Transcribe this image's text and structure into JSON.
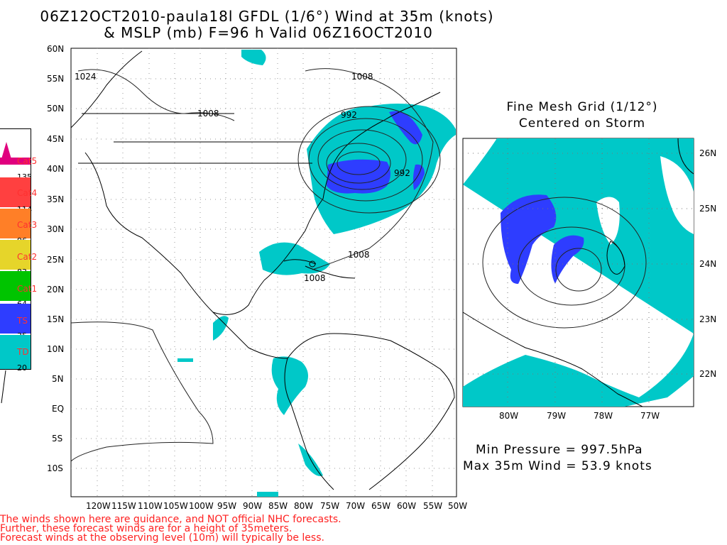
{
  "title": {
    "line1": "06Z12OCT2010-paula18l GFDL (1/6°) Wind at 35m (knots)",
    "line2": "& MSLP (mb) F=96 h Valid 06Z16OCT2010"
  },
  "main_map": {
    "lat_labels": [
      "60N",
      "55N",
      "50N",
      "45N",
      "40N",
      "35N",
      "30N",
      "25N",
      "20N",
      "15N",
      "10N",
      "5N",
      "EQ",
      "5S",
      "10S"
    ],
    "lon_labels": [
      "120W",
      "115W",
      "110W",
      "105W",
      "100W",
      "95W",
      "90W",
      "85W",
      "80W",
      "75W",
      "70W",
      "65W",
      "60W",
      "55W",
      "50W"
    ],
    "isobar_labels": [
      "1024",
      "1008",
      "1008",
      "992",
      "992",
      "1008",
      "1008"
    ]
  },
  "legend": {
    "categories": [
      {
        "name": "Cat5",
        "threshold": "135",
        "color": "#e0007e"
      },
      {
        "name": "Cat4",
        "threshold": "114",
        "color": "#ff4040"
      },
      {
        "name": "Cat3",
        "threshold": "96",
        "color": "#ff7f27"
      },
      {
        "name": "Cat2",
        "threshold": "83",
        "color": "#e6d52a"
      },
      {
        "name": "Cat1",
        "threshold": "64",
        "color": "#00c400"
      },
      {
        "name": "TS",
        "threshold": "35",
        "color": "#2e3dff"
      },
      {
        "name": "TD",
        "threshold": "20",
        "color": "#00c8c8"
      }
    ]
  },
  "inset": {
    "title_line1": "Fine Mesh Grid (1/12°)",
    "title_line2": "Centered on Storm",
    "lat_labels": [
      "26N",
      "25N",
      "24N",
      "23N",
      "22N"
    ],
    "lon_labels": [
      "80W",
      "79W",
      "78W",
      "77W"
    ]
  },
  "stats": {
    "min_pressure": "Min Pressure = 997.5hPa",
    "max_wind": "Max 35m Wind = 53.9 knots"
  },
  "disclaimer": {
    "line1": "The winds shown here are guidance, and NOT official NHC forecasts.",
    "line2": "Further, these forecast winds are for a height of 35meters.",
    "line3": "Forecast winds at the observing level (10m) will typically be less."
  },
  "colors": {
    "td": "#00c8c8",
    "ts": "#2e3dff",
    "warning_text": "#ff2020"
  }
}
